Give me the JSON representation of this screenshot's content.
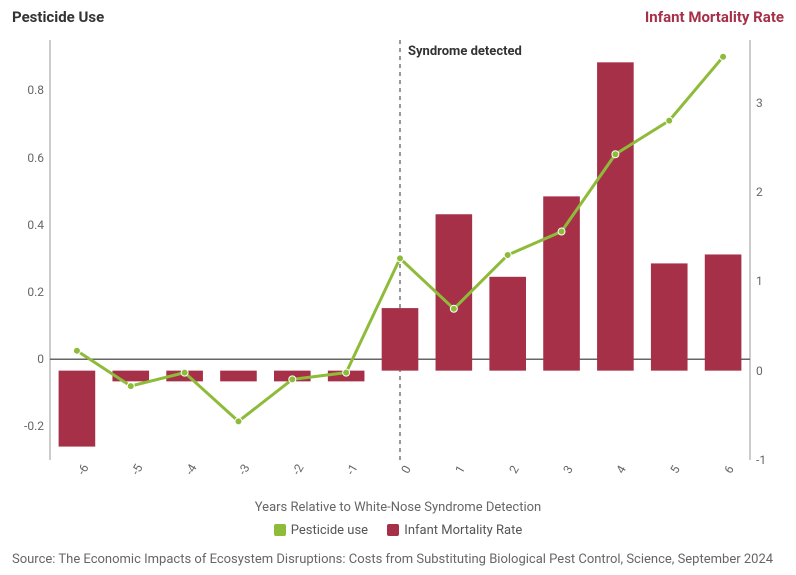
{
  "titles": {
    "left": "Pesticide Use",
    "right": "Infant Mortality Rate"
  },
  "x_axis_label": "Years Relative to White-Nose Syndrome Detection",
  "source": "Source: The Economic Impacts of Ecosystem Disruptions: Costs from Substituting Biological Pest Control, Science, September 2024",
  "legend": {
    "pesticide": {
      "label": "Pesticide use",
      "color": "#8fbb3a"
    },
    "mortality": {
      "label": "Infant Mortality Rate",
      "color": "#a63048"
    }
  },
  "annotation": {
    "text": "Syndrome detected",
    "x": 0
  },
  "chart": {
    "type": "combo-bar-line",
    "x_categories": [
      "-6",
      "-5",
      "-4",
      "-3",
      "-2",
      "-1",
      "0",
      "1",
      "2",
      "3",
      "4",
      "5",
      "6"
    ],
    "left_axis": {
      "min": -0.3,
      "max": 0.95,
      "ticks": [
        -0.2,
        0,
        0.2,
        0.4,
        0.6,
        0.8
      ]
    },
    "right_axis": {
      "min": -1,
      "max": 3.7,
      "ticks": [
        -1,
        0,
        1,
        2,
        3
      ]
    },
    "bar_series": {
      "name": "Infant Mortality Rate",
      "color": "#a63048",
      "axis": "right",
      "values": [
        -0.85,
        -0.12,
        -0.12,
        -0.12,
        -0.12,
        -0.12,
        0.7,
        1.75,
        1.05,
        1.95,
        3.45,
        1.2,
        1.3
      ]
    },
    "line_series": {
      "name": "Pesticide use",
      "color": "#8fbb3a",
      "axis": "left",
      "values": [
        0.025,
        -0.08,
        -0.04,
        -0.185,
        -0.06,
        -0.04,
        0.3,
        0.15,
        0.31,
        0.38,
        0.61,
        0.71,
        0.9
      ],
      "line_width": 3,
      "marker_radius": 3.5
    },
    "bar_width_ratio": 0.68,
    "background": "#ffffff",
    "zero_line_color": "#666666",
    "grid": false,
    "reference_line": {
      "x": 0,
      "style": "dashed",
      "color": "#333333"
    }
  }
}
